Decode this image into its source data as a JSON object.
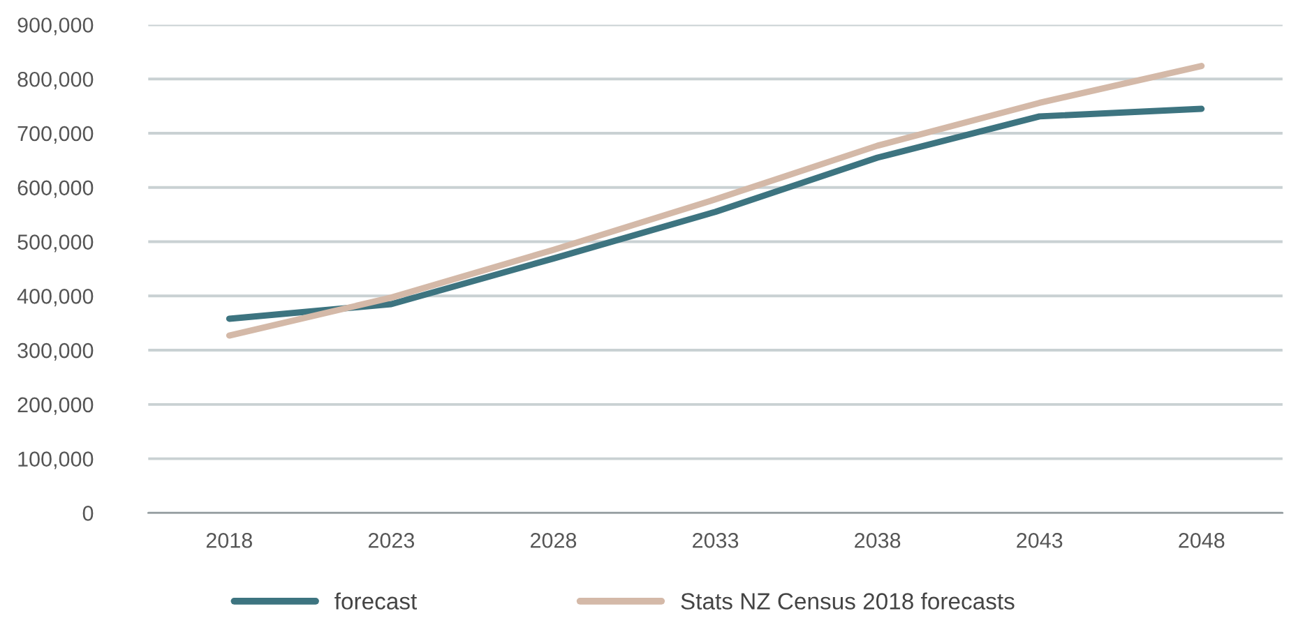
{
  "chart_data": {
    "type": "line",
    "categories": [
      "2018",
      "2023",
      "2028",
      "2033",
      "2038",
      "2043",
      "2048"
    ],
    "series": [
      {
        "name": "forecast",
        "color": "#3d7480",
        "values": [
          358000,
          385000,
          469000,
          555000,
          655000,
          731000,
          745000
        ]
      },
      {
        "name": "Stats NZ Census 2018 forecasts",
        "color": "#d4b9a8",
        "values": [
          327000,
          397000,
          485000,
          578000,
          677000,
          756000,
          824000
        ]
      }
    ],
    "ylim": [
      0,
      900000
    ],
    "yticks": [
      {
        "value": 0,
        "label": "0"
      },
      {
        "value": 100000,
        "label": "100,000"
      },
      {
        "value": 200000,
        "label": "200,000"
      },
      {
        "value": 300000,
        "label": "300,000"
      },
      {
        "value": 400000,
        "label": "400,000"
      },
      {
        "value": 500000,
        "label": "500,000"
      },
      {
        "value": 600000,
        "label": "600,000"
      },
      {
        "value": 700000,
        "label": "700,000"
      },
      {
        "value": 800000,
        "label": "800,000"
      },
      {
        "value": 900000,
        "label": "900,000"
      }
    ],
    "grid": "y",
    "legend": "bottom",
    "marker": "none",
    "line_style": "solid"
  }
}
